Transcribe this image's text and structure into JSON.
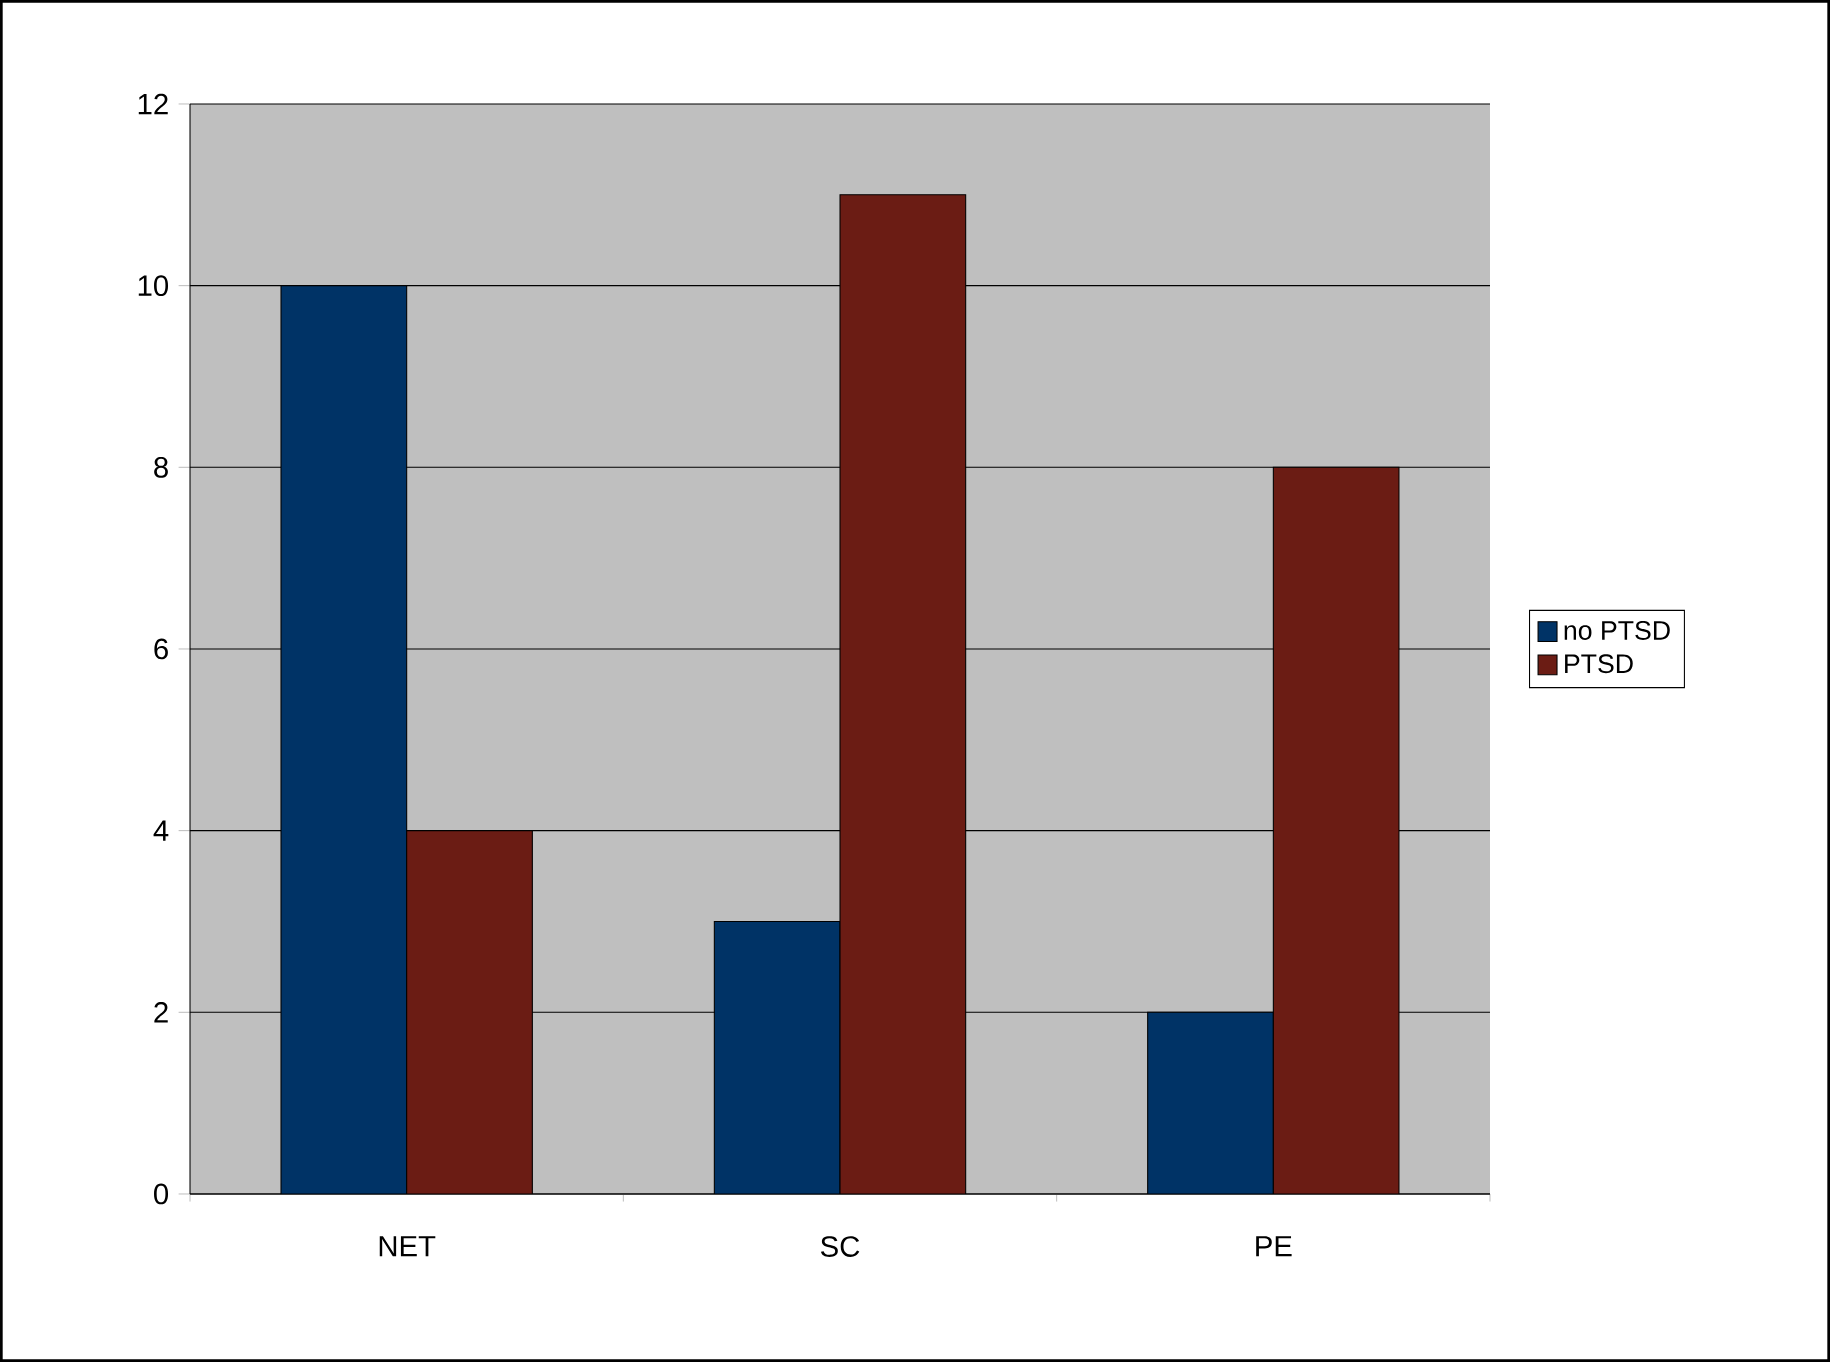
{
  "chart_data": {
    "type": "bar",
    "categories": [
      "NET",
      "SC",
      "PE"
    ],
    "series": [
      {
        "name": "no PTSD",
        "color": "#003366",
        "values": [
          10,
          3,
          2
        ]
      },
      {
        "name": "PTSD",
        "color": "#6b1c14",
        "values": [
          4,
          11,
          8
        ]
      }
    ],
    "ylim": [
      0,
      12
    ],
    "yticks": [
      0,
      2,
      4,
      6,
      8,
      10,
      12
    ],
    "grid": "y",
    "legend": "right"
  }
}
